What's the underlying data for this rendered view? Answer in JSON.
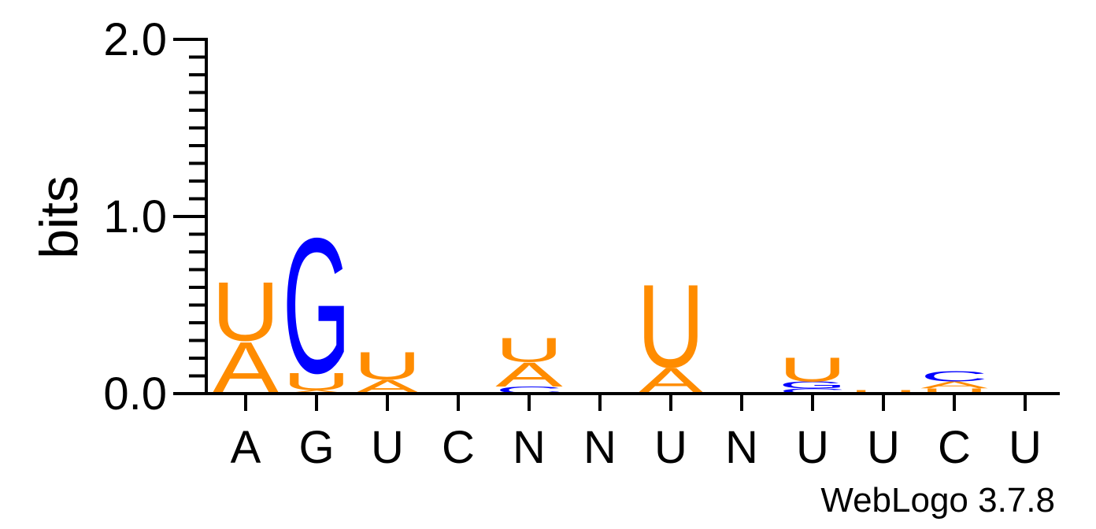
{
  "chart_data": {
    "type": "sequence-logo",
    "ylabel": "bits",
    "ylim": [
      0,
      2.0
    ],
    "yticks": [
      {
        "value": 0.0,
        "label": "0.0"
      },
      {
        "value": 1.0,
        "label": "1.0"
      },
      {
        "value": 2.0,
        "label": "2.0"
      }
    ],
    "xticklabels": [
      "A",
      "G",
      "U",
      "C",
      "N",
      "N",
      "U",
      "N",
      "U",
      "U",
      "C",
      "U"
    ],
    "colors": {
      "A": "#ff8c00",
      "U": "#ff8c00",
      "G": "#0000ff",
      "C": "#0000ff"
    },
    "positions": [
      {
        "label": "A",
        "stack": [
          {
            "letter": "A",
            "bits": 0.3
          },
          {
            "letter": "U",
            "bits": 0.34
          }
        ]
      },
      {
        "label": "G",
        "stack": [
          {
            "letter": "A",
            "bits": 0.02
          },
          {
            "letter": "U",
            "bits": 0.1
          },
          {
            "letter": "G",
            "bits": 0.78
          }
        ]
      },
      {
        "label": "U",
        "stack": [
          {
            "letter": "A",
            "bits": 0.08
          },
          {
            "letter": "U",
            "bits": 0.16
          }
        ]
      },
      {
        "label": "C",
        "stack": []
      },
      {
        "label": "N",
        "stack": [
          {
            "letter": "C",
            "bits": 0.04
          },
          {
            "letter": "A",
            "bits": 0.14
          },
          {
            "letter": "U",
            "bits": 0.14
          }
        ]
      },
      {
        "label": "N",
        "stack": []
      },
      {
        "label": "U",
        "stack": [
          {
            "letter": "A",
            "bits": 0.15
          },
          {
            "letter": "U",
            "bits": 0.48
          }
        ]
      },
      {
        "label": "N",
        "stack": []
      },
      {
        "label": "U",
        "stack": [
          {
            "letter": "C",
            "bits": 0.03
          },
          {
            "letter": "G",
            "bits": 0.04
          },
          {
            "letter": "U",
            "bits": 0.14
          }
        ]
      },
      {
        "label": "U",
        "stack": [
          {
            "letter": "U",
            "bits": 0.02
          }
        ]
      },
      {
        "label": "C",
        "stack": [
          {
            "letter": "U",
            "bits": 0.03
          },
          {
            "letter": "A",
            "bits": 0.04
          },
          {
            "letter": "C",
            "bits": 0.06
          }
        ]
      },
      {
        "label": "U",
        "stack": [
          {
            "letter": "U",
            "bits": 0.01
          }
        ]
      }
    ]
  },
  "credit": "WebLogo 3.7.8"
}
